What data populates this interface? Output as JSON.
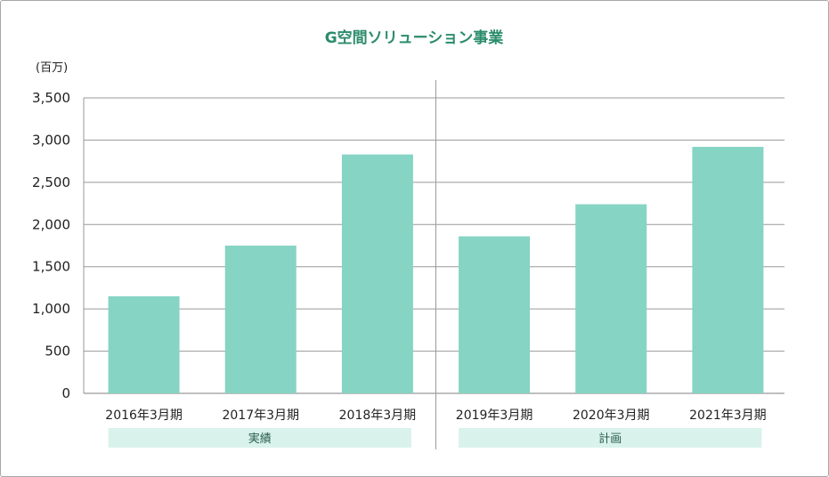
{
  "chart_data": {
    "type": "bar",
    "title": "G空間ソリューション事業",
    "ylabel": "(百万)",
    "xlabel": "",
    "ylim": [
      0,
      3500
    ],
    "yticks": [
      "0",
      "500",
      "1,000",
      "1,500",
      "2,000",
      "2,500",
      "3,000",
      "3,500"
    ],
    "categories": [
      "2016年3月期",
      "2017年3月期",
      "2018年3月期",
      "2019年3月期",
      "2020年3月期",
      "2021年3月期"
    ],
    "values": [
      1150,
      1750,
      2830,
      1860,
      2240,
      2920
    ],
    "groups": [
      {
        "label": "実績",
        "categories": [
          "2016年3月期",
          "2017年3月期",
          "2018年3月期"
        ]
      },
      {
        "label": "計画",
        "categories": [
          "2019年3月期",
          "2020年3月期",
          "2021年3月期"
        ]
      }
    ],
    "grid": true,
    "colors": {
      "bar": "#86d4c3",
      "grid": "#999999",
      "title": "#2b8c6c",
      "group_band": "#d9f2ec",
      "divider": "#9a9a9a"
    }
  }
}
